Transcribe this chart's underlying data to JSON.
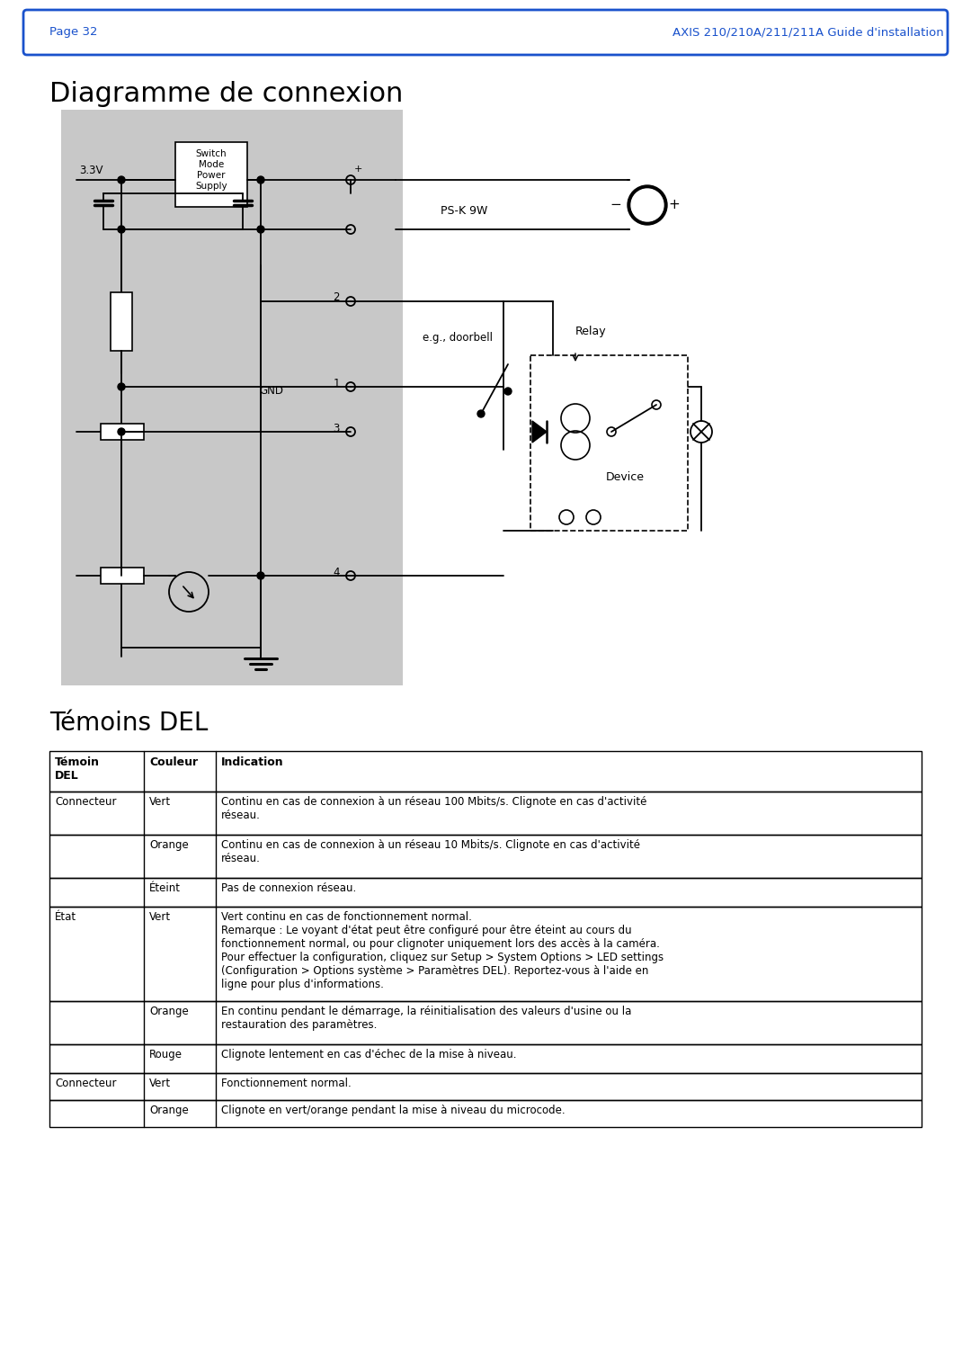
{
  "page_header_left": "Page 32",
  "page_header_right": "AXIS 210/210A/211/211A Guide d'installation",
  "header_bg": "#ffffff",
  "header_border_color": "#2255cc",
  "title_diagram": "Diagramme de connexion",
  "title_del": "Témoins DEL",
  "table_headers": [
    "Témoin\nDEL",
    "Couleur",
    "Indication"
  ],
  "table_rows": [
    [
      "Connecteur",
      "Vert",
      "Continu en cas de connexion à un réseau 100 Mbits/s. Clignote en cas d'activité\nréseau."
    ],
    [
      "",
      "Orange",
      "Continu en cas de connexion à un réseau 10 Mbits/s. Clignote en cas d'activité\nréseau."
    ],
    [
      "",
      "Éteint",
      "Pas de connexion réseau."
    ],
    [
      "État",
      "Vert",
      "Vert continu en cas de fonctionnement normal.\nRemarque : Le voyant d'état peut être configuré pour être éteint au cours du\nfonctionnement normal, ou pour clignoter uniquement lors des accès à la caméra.\nPour effectuer la configuration, cliquez sur Setup > System Options > LED settings\n(Configuration > Options système > Paramètres DEL). Reportez-vous à l'aide en\nligne pour plus d'informations."
    ],
    [
      "",
      "Orange",
      "En continu pendant le démarrage, la réinitialisation des valeurs d'usine ou la\nrestauration des paramètres."
    ],
    [
      "",
      "Rouge",
      "Clignote lentement en cas d'échec de la mise à niveau."
    ],
    [
      "Connecteur",
      "Vert",
      "Fonctionnement normal."
    ],
    [
      "",
      "Orange",
      "Clignote en vert/orange pendant la mise à niveau du microcode."
    ]
  ],
  "diagram_bg": "#d0d0d0",
  "text_color": "#000000",
  "blue_color": "#1a52cc",
  "font_size_header": 9,
  "font_size_title": 18,
  "font_size_table": 8.5,
  "font_size_table_header": 9
}
